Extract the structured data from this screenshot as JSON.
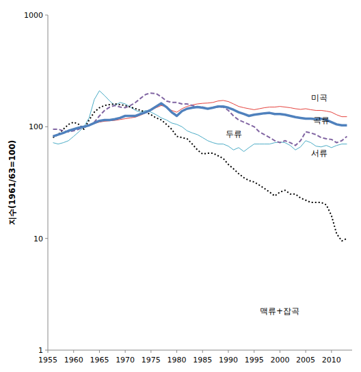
{
  "chart_data": {
    "type": "line",
    "y_label": "지수(1961/63=100)",
    "log": "y",
    "grid": false,
    "xlim": [
      1955,
      2014
    ],
    "xticks": [
      1955,
      1960,
      1965,
      1970,
      1975,
      1980,
      1985,
      1990,
      1995,
      2000,
      2005,
      2010
    ],
    "ylim": [
      1,
      1000
    ],
    "yticks": [
      1,
      10,
      100,
      1000
    ],
    "x": [
      1956,
      1957,
      1958,
      1959,
      1960,
      1961,
      1962,
      1963,
      1964,
      1965,
      1966,
      1967,
      1968,
      1969,
      1970,
      1971,
      1972,
      1973,
      1974,
      1975,
      1976,
      1977,
      1978,
      1979,
      1980,
      1981,
      1982,
      1983,
      1984,
      1985,
      1986,
      1987,
      1988,
      1989,
      1990,
      1991,
      1992,
      1993,
      1994,
      1995,
      1996,
      1997,
      1998,
      1999,
      2000,
      2001,
      2002,
      2003,
      2004,
      2005,
      2006,
      2007,
      2008,
      2009,
      2010,
      2011,
      2012,
      2013
    ],
    "series": [
      {
        "name": "미곡",
        "color": "#e5413c",
        "line_style": "solid",
        "values": [
          83,
          85,
          88,
          92,
          95,
          98,
          100,
          103,
          107,
          110,
          112,
          113,
          114,
          116,
          118,
          120,
          122,
          127,
          133,
          140,
          148,
          155,
          150,
          140,
          135,
          145,
          152,
          157,
          160,
          162,
          163,
          165,
          170,
          172,
          168,
          160,
          152,
          148,
          145,
          142,
          145,
          148,
          150,
          150,
          152,
          150,
          148,
          145,
          143,
          145,
          142,
          140,
          140,
          138,
          135,
          128,
          123,
          123
        ]
      },
      {
        "name": "곡류",
        "color": "#4f81bd",
        "line_style": "solid",
        "values": [
          82,
          85,
          88,
          92,
          95,
          98,
          100,
          103,
          108,
          113,
          115,
          115,
          117,
          120,
          125,
          125,
          125,
          130,
          135,
          142,
          152,
          162,
          150,
          135,
          125,
          138,
          145,
          148,
          150,
          148,
          145,
          148,
          152,
          152,
          148,
          142,
          135,
          130,
          125,
          128,
          130,
          132,
          133,
          130,
          130,
          128,
          125,
          122,
          120,
          118,
          118,
          117,
          118,
          115,
          110,
          105,
          103,
          103
        ]
      },
      {
        "name": "두류",
        "color": "#8064a2",
        "line_style": "dashed",
        "values": [
          95,
          95,
          92,
          90,
          92,
          95,
          100,
          103,
          110,
          125,
          140,
          150,
          155,
          150,
          148,
          155,
          165,
          180,
          195,
          200,
          198,
          185,
          170,
          165,
          165,
          160,
          160,
          155,
          150,
          150,
          145,
          148,
          150,
          150,
          140,
          125,
          115,
          110,
          105,
          100,
          90,
          85,
          80,
          75,
          72,
          75,
          72,
          68,
          75,
          90,
          88,
          85,
          80,
          78,
          77,
          72,
          75,
          82
        ]
      },
      {
        "name": "서류",
        "color": "#4bacc6",
        "line_style": "solid",
        "values": [
          72,
          70,
          72,
          75,
          82,
          90,
          100,
          120,
          175,
          210,
          190,
          170,
          155,
          165,
          160,
          150,
          140,
          135,
          140,
          135,
          128,
          120,
          115,
          108,
          105,
          100,
          92,
          88,
          85,
          80,
          75,
          72,
          70,
          70,
          67,
          62,
          65,
          60,
          65,
          70,
          70,
          70,
          70,
          72,
          73,
          72,
          68,
          62,
          66,
          75,
          72,
          67,
          66,
          68,
          65,
          68,
          70,
          70
        ]
      },
      {
        "name": "맥류+잡곡",
        "color": "#000000",
        "line_style": "dotted",
        "values": [
          80,
          85,
          95,
          105,
          110,
          105,
          95,
          115,
          135,
          148,
          155,
          158,
          160,
          158,
          155,
          150,
          145,
          140,
          135,
          128,
          120,
          115,
          105,
          95,
          82,
          80,
          78,
          70,
          62,
          57,
          58,
          58,
          55,
          52,
          46,
          42,
          38,
          35,
          33,
          32,
          30,
          28,
          26,
          24,
          26,
          27,
          25,
          25,
          23,
          22,
          21,
          21,
          21,
          20,
          16,
          11,
          9.5,
          10
        ]
      }
    ]
  }
}
